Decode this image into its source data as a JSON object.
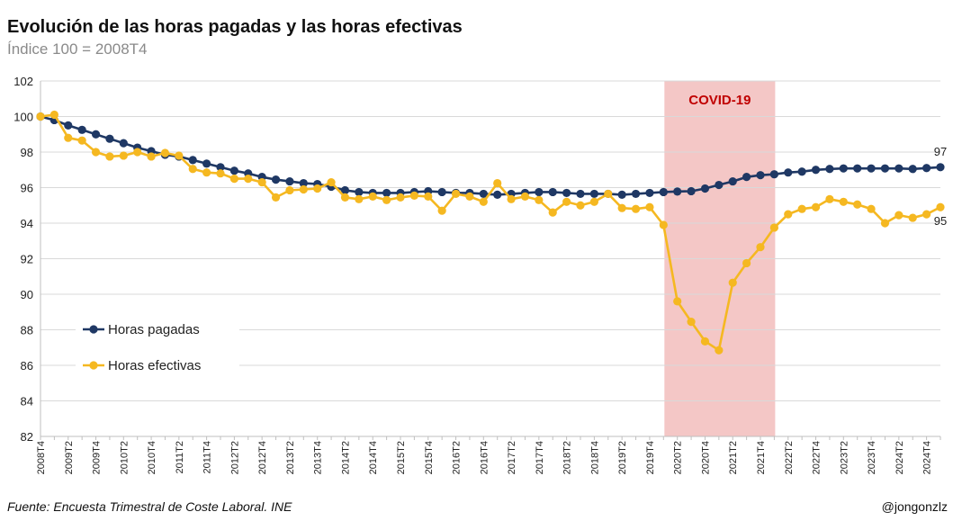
{
  "header": {
    "title": "Evolución de las horas pagadas y las horas efectivas",
    "subtitle": "Índice 100 = 2008T4"
  },
  "footer": {
    "source": "Fuente: Encuesta Trimestral de Coste Laboral. INE",
    "credit": "@jongonzlz"
  },
  "chart_data": {
    "type": "line",
    "ylim": [
      82,
      102
    ],
    "yticks": [
      82,
      84,
      86,
      88,
      90,
      92,
      94,
      96,
      98,
      100,
      102
    ],
    "grid": true,
    "legend_position": "bottom-left",
    "x": [
      "2008T4",
      "2009T1",
      "2009T2",
      "2009T3",
      "2009T4",
      "2010T1",
      "2010T2",
      "2010T3",
      "2010T4",
      "2011T1",
      "2011T2",
      "2011T3",
      "2011T4",
      "2012T1",
      "2012T2",
      "2012T3",
      "2012T4",
      "2013T1",
      "2013T2",
      "2013T3",
      "2013T4",
      "2014T1",
      "2014T2",
      "2014T3",
      "2014T4",
      "2015T1",
      "2015T2",
      "2015T3",
      "2015T4",
      "2016T1",
      "2016T2",
      "2016T3",
      "2016T4",
      "2017T1",
      "2017T2",
      "2017T3",
      "2017T4",
      "2018T1",
      "2018T2",
      "2018T3",
      "2018T4",
      "2019T1",
      "2019T2",
      "2019T3",
      "2019T4",
      "2020T1",
      "2020T2",
      "2020T3",
      "2020T4",
      "2021T1",
      "2021T2",
      "2021T3",
      "2021T4",
      "2022T1",
      "2022T2",
      "2022T3",
      "2022T4",
      "2023T1",
      "2023T2",
      "2023T3",
      "2023T4",
      "2024T1",
      "2024T2",
      "2024T3",
      "2024T4",
      "2025T1"
    ],
    "series": [
      {
        "name": "Horas pagadas",
        "color": "#1f3864",
        "end_label": "97",
        "values": [
          100,
          99.8,
          99.5,
          99.25,
          99.0,
          98.75,
          98.5,
          98.25,
          98.05,
          97.85,
          97.75,
          97.55,
          97.35,
          97.15,
          96.95,
          96.8,
          96.6,
          96.45,
          96.35,
          96.25,
          96.2,
          96.05,
          95.85,
          95.75,
          95.7,
          95.7,
          95.7,
          95.75,
          95.8,
          95.75,
          95.7,
          95.7,
          95.65,
          95.6,
          95.65,
          95.7,
          95.75,
          95.75,
          95.7,
          95.65,
          95.65,
          95.65,
          95.6,
          95.65,
          95.7,
          95.75,
          95.78,
          95.8,
          95.95,
          96.15,
          96.35,
          96.6,
          96.7,
          96.75,
          96.85,
          96.9,
          97.0,
          97.05,
          97.08,
          97.08,
          97.08,
          97.08,
          97.08,
          97.05,
          97.1,
          97.15
        ]
      },
      {
        "name": "Horas efectivas",
        "color": "#f5b821",
        "end_label": "95",
        "values": [
          100,
          100.1,
          98.8,
          98.65,
          98.0,
          97.75,
          97.8,
          98.0,
          97.75,
          97.95,
          97.8,
          97.05,
          96.85,
          96.8,
          96.5,
          96.5,
          96.3,
          95.45,
          95.85,
          95.9,
          95.95,
          96.3,
          95.45,
          95.35,
          95.5,
          95.3,
          95.45,
          95.55,
          95.5,
          94.7,
          95.65,
          95.5,
          95.2,
          96.25,
          95.35,
          95.5,
          95.3,
          94.6,
          95.2,
          95.0,
          95.2,
          95.65,
          94.85,
          94.8,
          94.9,
          93.9,
          89.6,
          88.45,
          87.35,
          86.85,
          90.65,
          91.75,
          92.65,
          93.75,
          94.5,
          94.8,
          94.9,
          95.35,
          95.2,
          95.05,
          94.8,
          94.0,
          94.45,
          94.3,
          94.5,
          94.9
        ]
      }
    ],
    "annotations": [
      {
        "label": "COVID-19",
        "x_start": "2020T1",
        "x_end": "2022T1",
        "fill": "#f4c7c6",
        "text_color": "#c00000"
      }
    ]
  }
}
